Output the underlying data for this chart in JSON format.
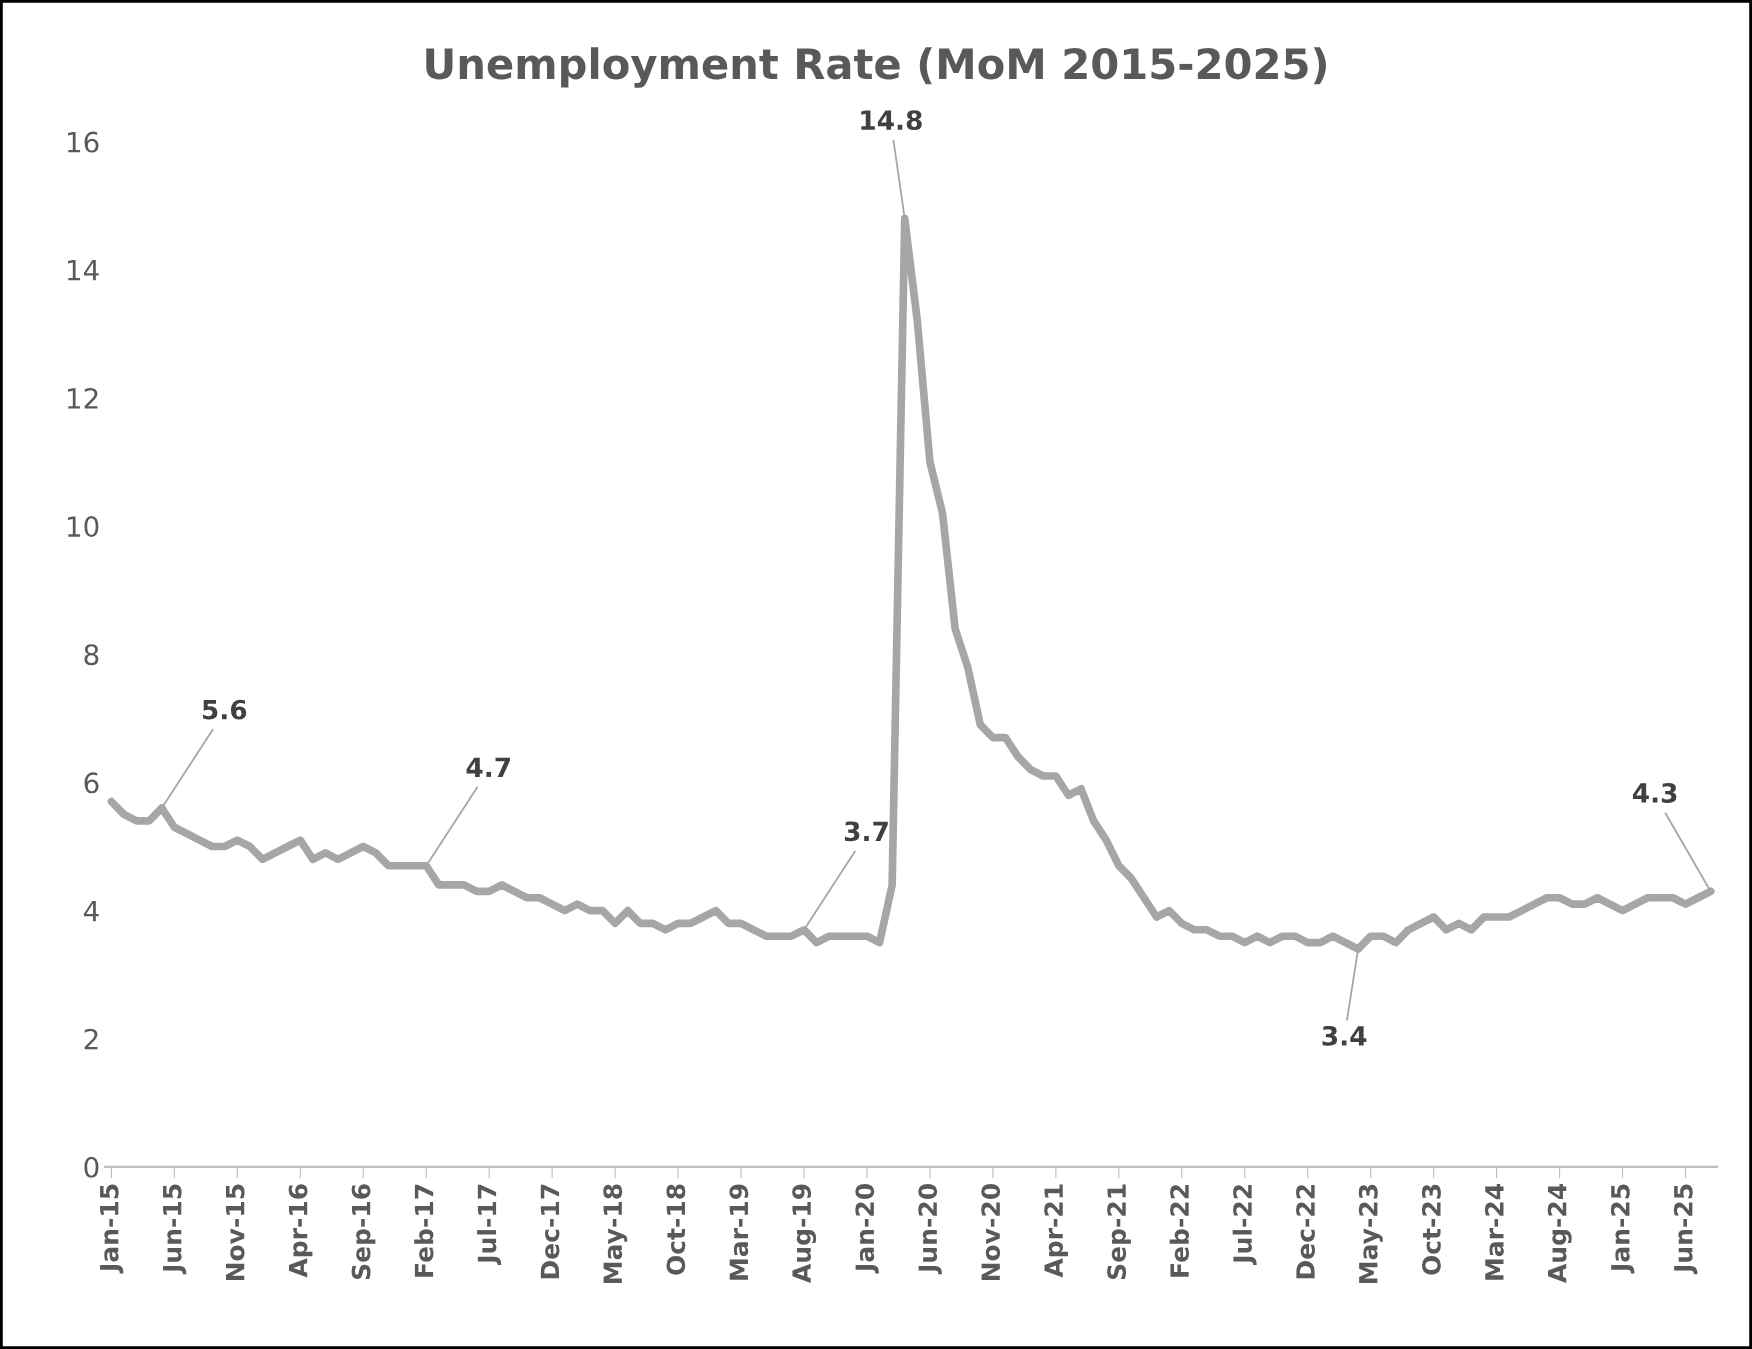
{
  "chart_data": {
    "type": "line",
    "title": "Unemployment Rate (MoM 2015-2025)",
    "categories": [
      "Jan-15",
      null,
      null,
      null,
      null,
      "Jun-15",
      null,
      null,
      null,
      null,
      "Nov-15",
      null,
      null,
      null,
      null,
      "Apr-16",
      null,
      null,
      null,
      null,
      "Sep-16",
      null,
      null,
      null,
      null,
      "Feb-17",
      null,
      null,
      null,
      null,
      "Jul-17",
      null,
      null,
      null,
      null,
      "Dec-17",
      null,
      null,
      null,
      null,
      "May-18",
      null,
      null,
      null,
      null,
      "Oct-18",
      null,
      null,
      null,
      null,
      "Mar-19",
      null,
      null,
      null,
      null,
      "Aug-19",
      null,
      null,
      null,
      null,
      "Jan-20",
      null,
      null,
      null,
      null,
      "Jun-20",
      null,
      null,
      null,
      null,
      "Nov-20",
      null,
      null,
      null,
      null,
      "Apr-21",
      null,
      null,
      null,
      null,
      "Sep-21",
      null,
      null,
      null,
      null,
      "Feb-22",
      null,
      null,
      null,
      null,
      "Jul-22",
      null,
      null,
      null,
      null,
      "Dec-22",
      null,
      null,
      null,
      null,
      "May-23",
      null,
      null,
      null,
      null,
      "Oct-23",
      null,
      null,
      null,
      null,
      "Mar-24",
      null,
      null,
      null,
      null,
      "Aug-24",
      null,
      null,
      null,
      null,
      "Jan-25",
      null,
      null,
      null,
      null,
      "Jun-25",
      null,
      null
    ],
    "series": [
      {
        "color": "#a6a6a6",
        "values": [
          5.7,
          5.5,
          5.4,
          5.4,
          5.6,
          5.3,
          5.2,
          5.1,
          5.0,
          5.0,
          5.1,
          5.0,
          4.8,
          4.9,
          5.0,
          5.1,
          4.8,
          4.9,
          4.8,
          4.9,
          5.0,
          4.9,
          4.7,
          4.7,
          4.7,
          4.7,
          4.4,
          4.4,
          4.4,
          4.3,
          4.3,
          4.4,
          4.3,
          4.2,
          4.2,
          4.1,
          4.0,
          4.1,
          4.0,
          4.0,
          3.8,
          4.0,
          3.8,
          3.8,
          3.7,
          3.8,
          3.8,
          3.9,
          4.0,
          3.8,
          3.8,
          3.7,
          3.6,
          3.6,
          3.6,
          3.7,
          3.5,
          3.6,
          3.6,
          3.6,
          3.6,
          3.5,
          4.4,
          14.8,
          13.2,
          11.0,
          10.2,
          8.4,
          7.8,
          6.9,
          6.7,
          6.7,
          6.4,
          6.2,
          6.1,
          6.1,
          5.8,
          5.9,
          5.4,
          5.1,
          4.7,
          4.5,
          4.2,
          3.9,
          4.0,
          3.8,
          3.7,
          3.7,
          3.6,
          3.6,
          3.5,
          3.6,
          3.5,
          3.6,
          3.6,
          3.5,
          3.5,
          3.6,
          3.5,
          3.4,
          3.6,
          3.6,
          3.5,
          3.7,
          3.8,
          3.9,
          3.7,
          3.8,
          3.7,
          3.9,
          3.9,
          3.9,
          4.0,
          4.1,
          4.2,
          4.2,
          4.1,
          4.1,
          4.2,
          4.1,
          4.0,
          4.1,
          4.2,
          4.2,
          4.2,
          4.1,
          4.2,
          4.3
        ],
        "value_labels": [
          null,
          null,
          null,
          null,
          "5.6",
          null,
          null,
          null,
          null,
          null,
          null,
          null,
          null,
          null,
          null,
          null,
          null,
          null,
          null,
          null,
          null,
          null,
          null,
          null,
          null,
          "4.7",
          null,
          null,
          null,
          null,
          null,
          null,
          null,
          null,
          null,
          null,
          null,
          null,
          null,
          null,
          null,
          null,
          null,
          null,
          null,
          null,
          null,
          null,
          null,
          null,
          null,
          null,
          null,
          null,
          null,
          "3.7",
          null,
          null,
          null,
          null,
          null,
          null,
          null,
          "14.8",
          null,
          null,
          null,
          null,
          null,
          null,
          null,
          null,
          null,
          null,
          null,
          null,
          null,
          null,
          null,
          null,
          null,
          null,
          null,
          null,
          null,
          null,
          null,
          null,
          null,
          null,
          null,
          null,
          null,
          null,
          null,
          null,
          null,
          null,
          null,
          "3.4",
          null,
          null,
          null,
          null,
          null,
          null,
          null,
          null,
          null,
          null,
          null,
          null,
          null,
          null,
          null,
          null,
          null,
          null,
          null,
          null,
          null,
          null,
          null,
          null,
          null,
          null,
          null,
          "4.3"
        ]
      }
    ],
    "ylim": [
      0,
      16
    ],
    "yticks": [
      0,
      2,
      4,
      6,
      8,
      10,
      12,
      14,
      16
    ],
    "grid": false,
    "legend": false,
    "marker": "none",
    "line_style": "solid"
  }
}
